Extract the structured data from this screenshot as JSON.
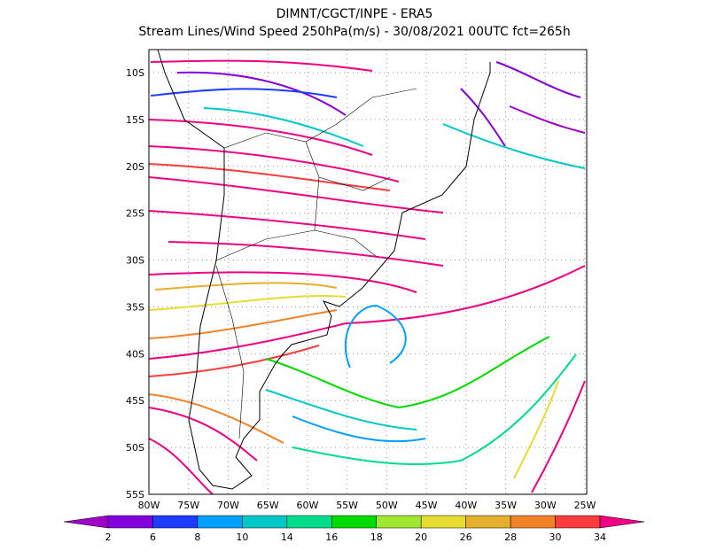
{
  "header": {
    "title": "DIMNT/CGCT/INPE -  ERA5",
    "subtitle": "Stream Lines/Wind Speed 250hPa(m/s) -  30/08/2021 00UTC fct=265h"
  },
  "map": {
    "lon_ticks": [
      {
        "value": -80,
        "label": "80W"
      },
      {
        "value": -75,
        "label": "75W"
      },
      {
        "value": -70,
        "label": "70W"
      },
      {
        "value": -65,
        "label": "65W"
      },
      {
        "value": -60,
        "label": "60W"
      },
      {
        "value": -55,
        "label": "55W"
      },
      {
        "value": -50,
        "label": "50W"
      },
      {
        "value": -45,
        "label": "45W"
      },
      {
        "value": -40,
        "label": "40W"
      },
      {
        "value": -35,
        "label": "35W"
      },
      {
        "value": -30,
        "label": "30W"
      },
      {
        "value": -25,
        "label": "25W"
      }
    ],
    "lat_ticks": [
      {
        "value": -10,
        "label": "10S"
      },
      {
        "value": -15,
        "label": "15S"
      },
      {
        "value": -20,
        "label": "20S"
      },
      {
        "value": -25,
        "label": "25S"
      },
      {
        "value": -30,
        "label": "30S"
      },
      {
        "value": -35,
        "label": "35S"
      },
      {
        "value": -40,
        "label": "40S"
      },
      {
        "value": -45,
        "label": "45S"
      },
      {
        "value": -50,
        "label": "50S"
      },
      {
        "value": -55,
        "label": "55S"
      }
    ],
    "colorbar": {
      "levels": [
        2,
        6,
        8,
        10,
        14,
        16,
        18,
        20,
        26,
        28,
        30,
        34
      ],
      "colors": [
        "#a000c8",
        "#8200dc",
        "#1e3cff",
        "#00a0ff",
        "#00c8c8",
        "#00dc8c",
        "#00dc00",
        "#a0e632",
        "#e6dc32",
        "#e6af2d",
        "#f08228",
        "#fa3c3c",
        "#f00082"
      ]
    }
  }
}
